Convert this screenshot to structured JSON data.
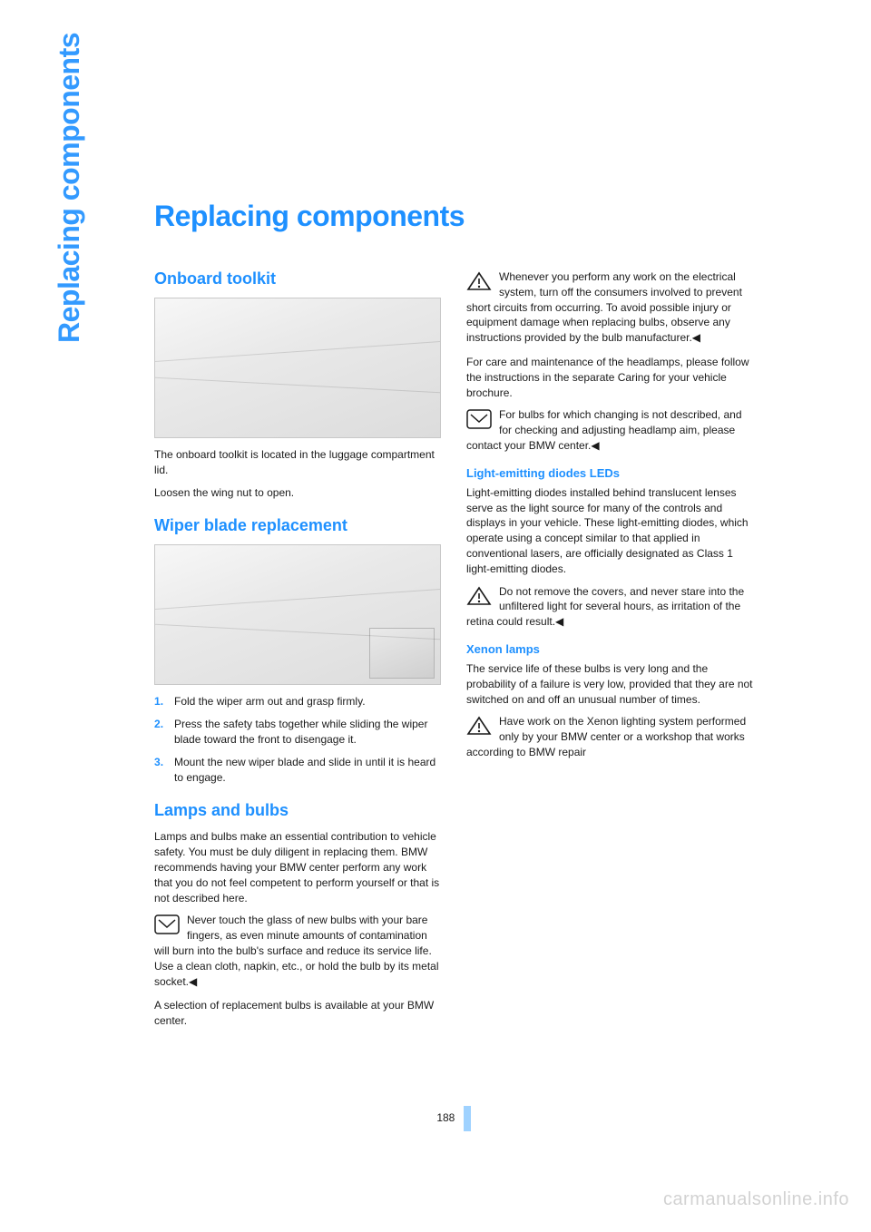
{
  "colors": {
    "accent": "#1e90ff",
    "accent_light": "#9fd2ff",
    "text": "#1a1a1a",
    "watermark": "#808080",
    "figure_border": "#c8c8c8"
  },
  "typography": {
    "h1_size_pt": 24,
    "h2_size_pt": 14,
    "h3_size_pt": 10,
    "body_size_pt": 9,
    "side_label_size_pt": 24
  },
  "side_label": "Replacing components",
  "title": "Replacing components",
  "page_number": "188",
  "watermark": "carmanualsonline.info",
  "sections": {
    "onboard_toolkit": {
      "heading": "Onboard toolkit",
      "para1": "The onboard toolkit is located in the luggage compartment lid.",
      "para2": "Loosen the wing nut to open."
    },
    "wiper": {
      "heading": "Wiper blade replacement",
      "steps": [
        "Fold the wiper arm out and grasp firmly.",
        "Press the safety tabs together while sliding the wiper blade toward the front to disengage it.",
        "Mount the new wiper blade and slide in until it is heard to engage."
      ]
    },
    "lamps": {
      "heading": "Lamps and bulbs",
      "intro": "Lamps and bulbs make an essential contribution to vehicle safety. You must be duly diligent in replacing them. BMW recommends having your BMW center perform any work that you do not feel competent to perform yourself or that is not described here.",
      "note_glass": "Never touch the glass of new bulbs with your bare fingers, as even minute amounts of contamination will burn into the bulb's surface and reduce its service life. Use a clean cloth, napkin, etc., or hold the bulb by its metal socket.◀",
      "availability": "A selection of replacement bulbs is available at your BMW center.",
      "warn_electrical": "Whenever you perform any work on the electrical system, turn off the consumers involved to prevent short circuits from occurring. To avoid possible injury or equipment damage when replacing bulbs, observe any instructions provided by the bulb manufacturer.◀",
      "care": "For care and maintenance of the headlamps, please follow the instructions in the separate Caring for your vehicle brochure.",
      "note_aim": "For bulbs for which changing is not described, and for checking and adjusting headlamp aim, please contact your BMW center.◀"
    },
    "leds": {
      "heading": "Light-emitting diodes LEDs",
      "para": "Light-emitting diodes installed behind translucent lenses serve as the light source for many of the controls and displays in your vehicle. These light-emitting diodes, which operate using a concept similar to that applied in conventional lasers, are officially designated as Class 1 light-emitting diodes.",
      "warn": "Do not remove the covers, and never stare into the unfiltered light for several hours, as irritation of the retina could result.◀"
    },
    "xenon": {
      "heading": "Xenon lamps",
      "para": "The service life of these bulbs is very long and the probability of a failure is very low, provided that they are not switched on and off an unusual number of times.",
      "warn": "Have work on the Xenon lighting system performed only by your BMW center or a workshop that works according to BMW repair"
    }
  }
}
